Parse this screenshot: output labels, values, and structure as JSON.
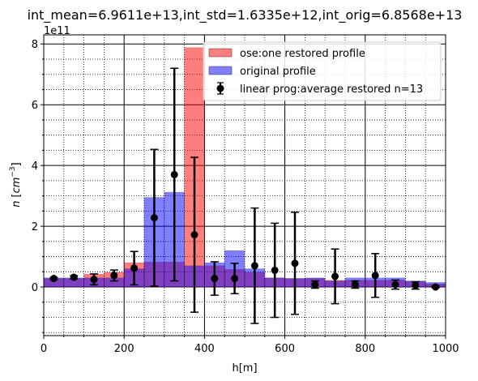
{
  "chart_data": {
    "type": "bar",
    "title": "int_mean=6.9611e+13,int_std=1.6335e+12,int_orig=6.8568e+13",
    "xlabel": "h[m]",
    "ylabel_main": "n",
    "ylabel_unit_base": "cm",
    "ylabel_unit_exp": "−3",
    "y_offset_text": "1e11",
    "xlim": [
      0,
      1000
    ],
    "ylim": [
      -1.6,
      8.3
    ],
    "y_scale_unit": "1e11",
    "x_ticks": [
      0,
      200,
      400,
      600,
      800,
      1000
    ],
    "x_tick_labels": [
      "0",
      "200",
      "400",
      "600",
      "800",
      "1000"
    ],
    "y_ticks": [
      0,
      2,
      4,
      6,
      8
    ],
    "y_tick_labels": [
      "0",
      "2",
      "4",
      "6",
      "8"
    ],
    "grid": "major and minor, dotted",
    "legend_position": "top-right",
    "bin_width": 50,
    "bin_left_edges": [
      0,
      50,
      100,
      150,
      200,
      250,
      300,
      350,
      400,
      450,
      500,
      550,
      600,
      650,
      700,
      750,
      800,
      850,
      900,
      950
    ],
    "series": [
      {
        "name": "ose:one restored profile",
        "kind": "bar",
        "color": "#ff0000",
        "opacity": 0.5,
        "values": [
          0.28,
          0.28,
          0.42,
          0.48,
          0.8,
          0.82,
          0.82,
          7.88,
          0.7,
          0.58,
          0.48,
          0.3,
          0.28,
          0.28,
          0.22,
          0.22,
          0.22,
          0.22,
          0.18,
          0.1
        ]
      },
      {
        "name": "original profile",
        "kind": "bar",
        "color": "#0000ff",
        "opacity": 0.5,
        "values": [
          0.3,
          0.3,
          0.3,
          0.3,
          0.6,
          2.95,
          3.12,
          0.7,
          0.8,
          1.2,
          0.6,
          0.3,
          0.28,
          0.3,
          0.2,
          0.3,
          0.3,
          0.3,
          0.2,
          0.15
        ]
      },
      {
        "name": "linear prog:average restored n=13",
        "kind": "errorbar",
        "color": "#000000",
        "x": [
          25,
          75,
          125,
          175,
          225,
          275,
          325,
          375,
          425,
          475,
          525,
          575,
          625,
          675,
          725,
          775,
          825,
          875,
          925,
          975
        ],
        "y": [
          0.28,
          0.32,
          0.25,
          0.38,
          0.62,
          2.28,
          3.7,
          1.72,
          0.28,
          0.28,
          0.7,
          0.55,
          0.78,
          0.08,
          0.35,
          0.08,
          0.38,
          0.08,
          0.05,
          0.0
        ],
        "yerr": [
          0.03,
          0.05,
          0.18,
          0.18,
          0.55,
          2.25,
          3.5,
          2.55,
          0.55,
          0.5,
          1.9,
          1.55,
          1.68,
          0.12,
          0.9,
          0.12,
          0.72,
          0.15,
          0.12,
          0.03
        ]
      }
    ]
  }
}
